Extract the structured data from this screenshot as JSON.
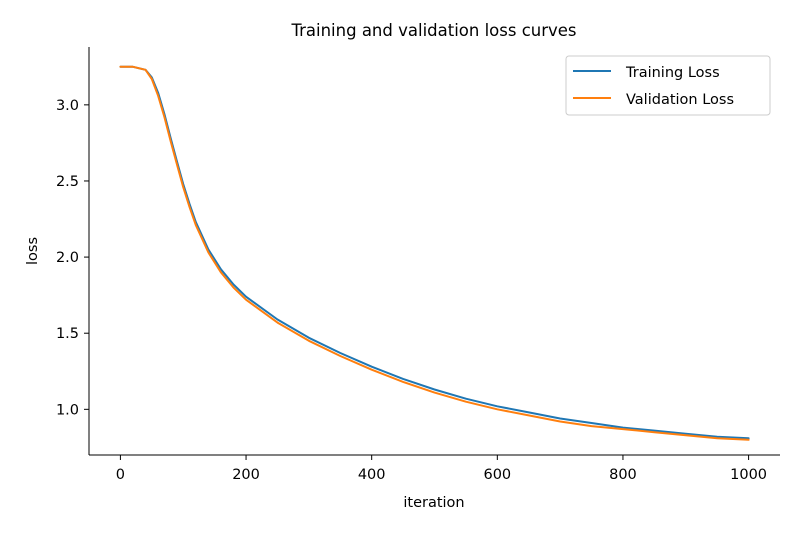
{
  "chart_data": {
    "type": "line",
    "title": "Training and validation loss curves",
    "xlabel": "iteration",
    "ylabel": "loss",
    "xlim": [
      -50,
      1050
    ],
    "ylim": [
      0.7,
      3.38
    ],
    "xticks": [
      0,
      200,
      400,
      600,
      800,
      1000
    ],
    "xtick_labels": [
      "0",
      "200",
      "400",
      "600",
      "800",
      "1000"
    ],
    "yticks": [
      1.0,
      1.5,
      2.0,
      2.5,
      3.0
    ],
    "ytick_labels": [
      "1.0",
      "1.5",
      "2.0",
      "2.5",
      "3.0"
    ],
    "grid": false,
    "legend_position": "top-right",
    "x": [
      0,
      20,
      40,
      50,
      60,
      70,
      80,
      90,
      100,
      110,
      120,
      140,
      160,
      180,
      200,
      250,
      300,
      350,
      400,
      450,
      500,
      550,
      600,
      650,
      700,
      750,
      800,
      850,
      900,
      950,
      1000
    ],
    "series": [
      {
        "name": "Training Loss",
        "color": "#1f77b4",
        "values": [
          3.25,
          3.25,
          3.23,
          3.18,
          3.08,
          2.94,
          2.78,
          2.63,
          2.48,
          2.35,
          2.23,
          2.05,
          1.92,
          1.82,
          1.74,
          1.59,
          1.47,
          1.37,
          1.28,
          1.2,
          1.13,
          1.07,
          1.02,
          0.98,
          0.94,
          0.91,
          0.88,
          0.86,
          0.84,
          0.82,
          0.81
        ]
      },
      {
        "name": "Validation Loss",
        "color": "#ff7f0e",
        "values": [
          3.25,
          3.25,
          3.23,
          3.17,
          3.06,
          2.92,
          2.76,
          2.61,
          2.46,
          2.33,
          2.21,
          2.03,
          1.9,
          1.8,
          1.72,
          1.57,
          1.45,
          1.35,
          1.26,
          1.18,
          1.11,
          1.05,
          1.0,
          0.96,
          0.92,
          0.89,
          0.87,
          0.85,
          0.83,
          0.81,
          0.8
        ]
      }
    ]
  }
}
